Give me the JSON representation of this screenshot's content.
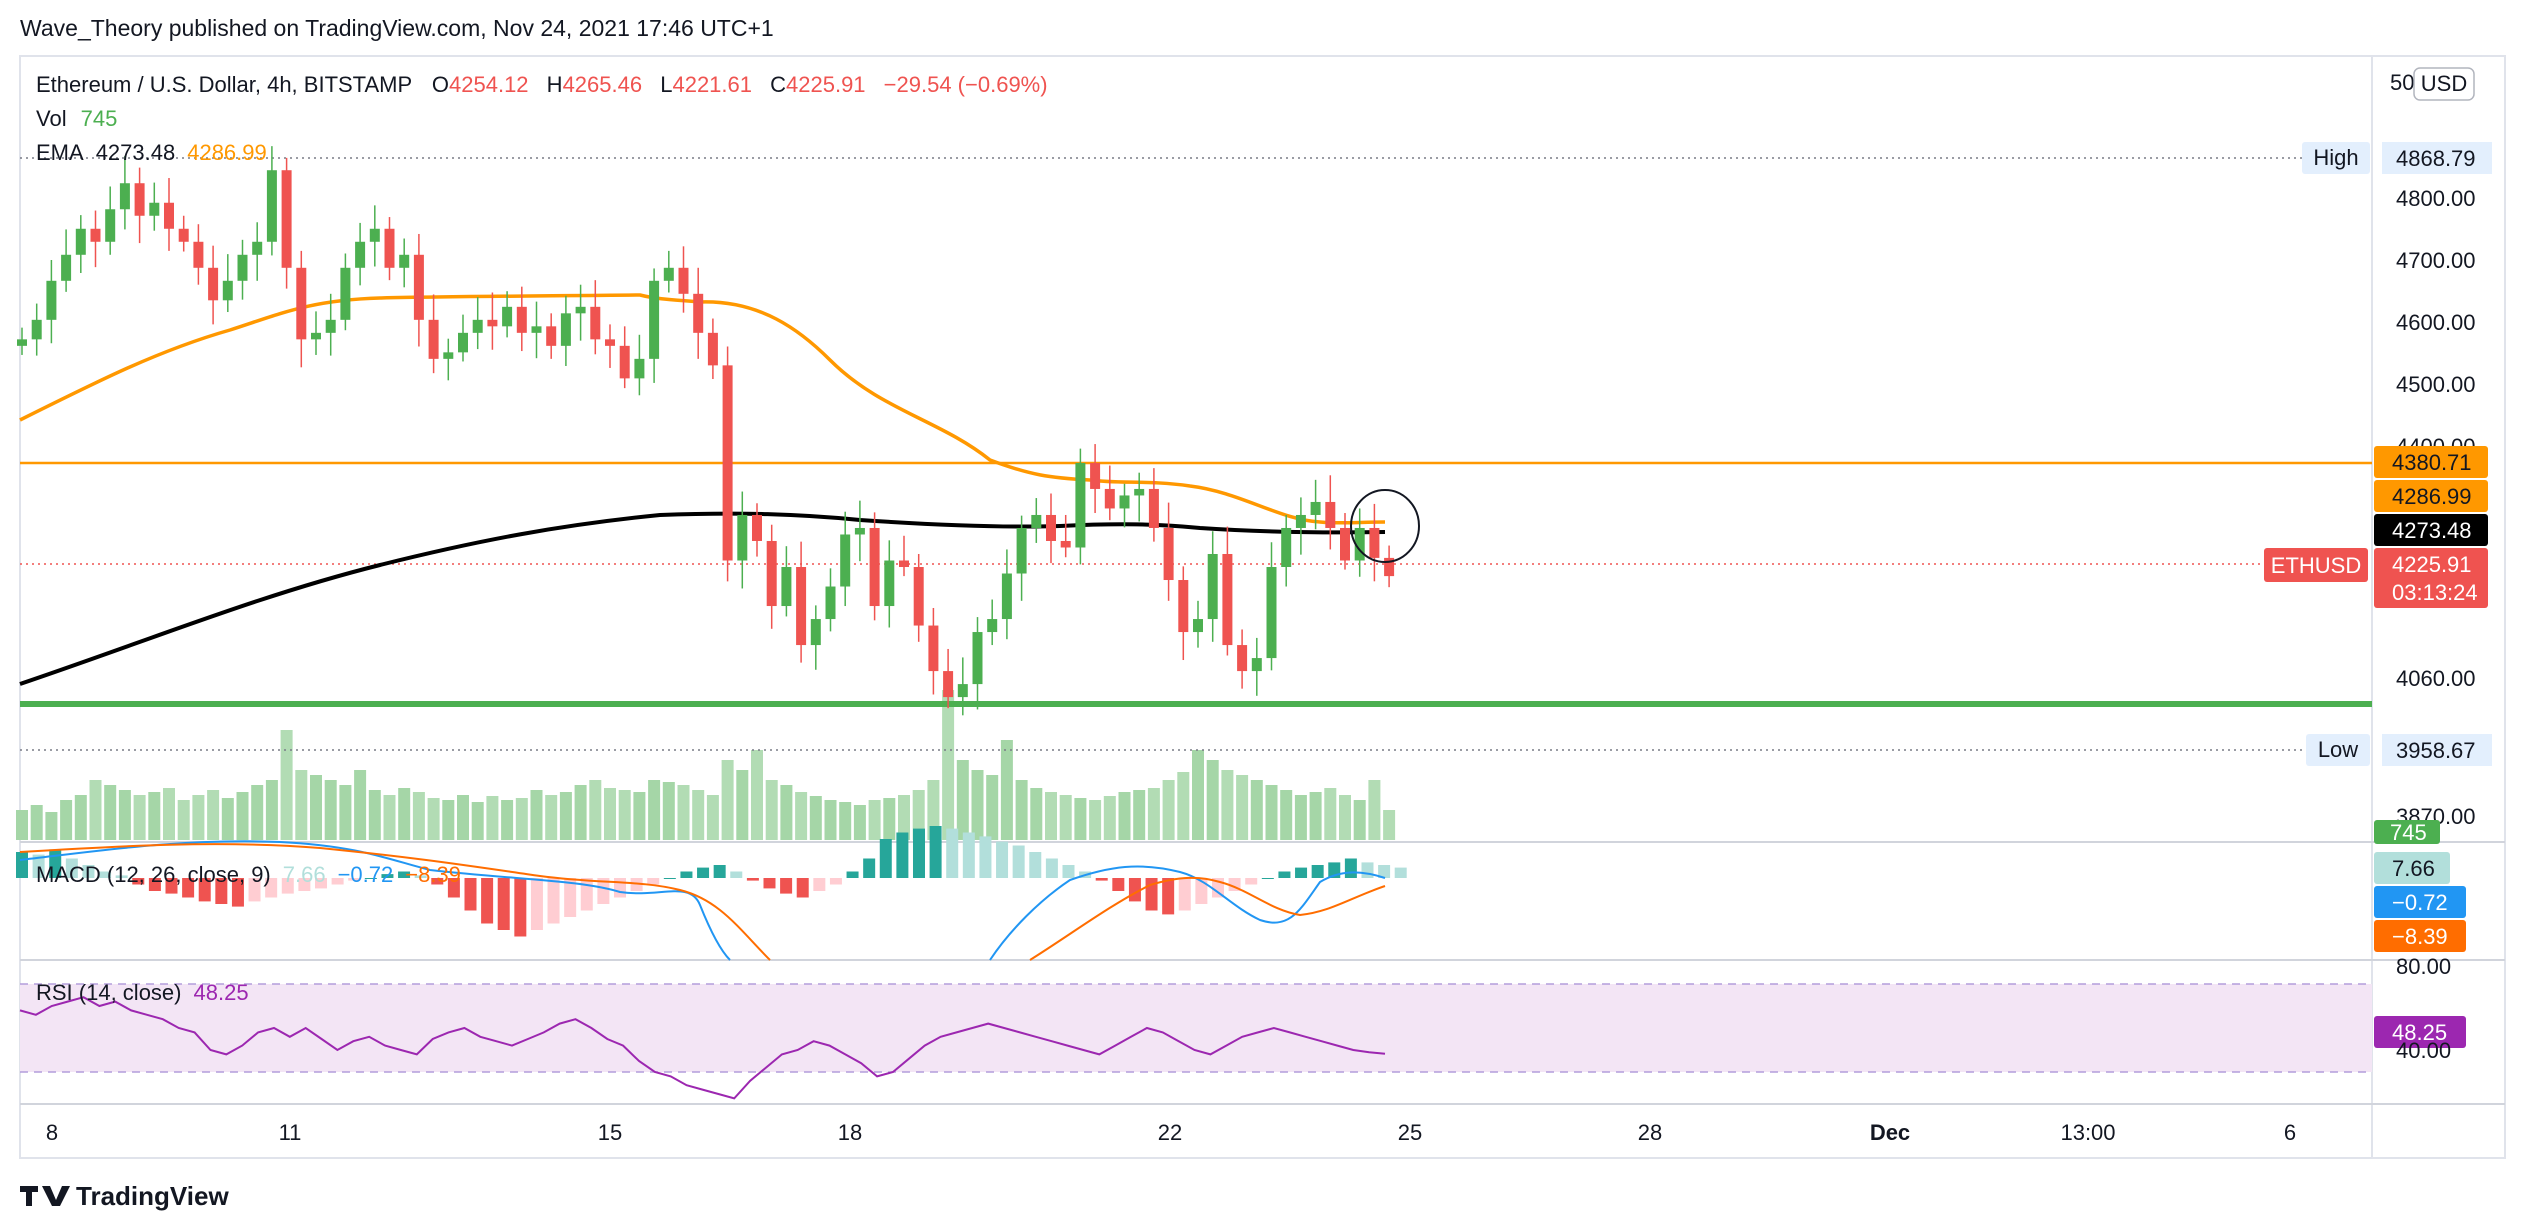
{
  "header": {
    "publisher_line": "Wave_Theory published on TradingView.com, Nov 24, 2021 17:46 UTC+1"
  },
  "legend": {
    "symbol": "Ethereum / U.S. Dollar, 4h, BITSTAMP",
    "open_label": "O",
    "open": "4254.12",
    "high_label": "H",
    "high": "4265.46",
    "low_label": "L",
    "low": "4221.61",
    "close_label": "C",
    "close": "4225.91",
    "change": "−29.54 (−0.69%)",
    "vol_label": "Vol",
    "vol": "745",
    "ema_label": "EMA",
    "ema1": "4273.48",
    "ema2": "4286.99",
    "macd_label": "MACD (12, 26, close, 9)",
    "macd_hist": "7.66",
    "macd_line": "−0.72",
    "macd_signal": "−8.39",
    "rsi_label": "RSI (14, close)",
    "rsi": "48.25"
  },
  "price_axis": {
    "currency": "USD",
    "ticks": [
      "4800.00",
      "4700.00",
      "4600.00",
      "4500.00",
      "4060.00"
    ],
    "partial_ticks": [
      "50",
      "4400.00",
      "3870.00"
    ],
    "high_label": "High",
    "high_value": "4868.79",
    "low_label": "Low",
    "low_value": "3958.67",
    "tags": {
      "orange_line": "4380.71",
      "ema_orange": "4286.99",
      "ema_black": "4273.48",
      "symbol_tag": "ETHUSD",
      "last_price": "4225.91",
      "countdown": "03:13:24",
      "volume": "745",
      "macd_hist": "7.66",
      "macd_line": "−0.72",
      "macd_signal": "−8.39",
      "rsi_value": "48.25",
      "rsi_80": "80.00",
      "rsi_40": "40.00"
    }
  },
  "time_axis": {
    "labels": [
      "8",
      "11",
      "15",
      "18",
      "22",
      "25",
      "28",
      "Dec",
      "13:00",
      "6"
    ]
  },
  "footer": {
    "brand": "TradingView"
  },
  "colors": {
    "up": "#26a69a",
    "up_candle": "#4caf50",
    "down": "#ef5350",
    "ema_fast": "#ff9800",
    "ema_slow": "#000000",
    "support": "#4caf50",
    "resistance": "#ff9800",
    "macd_line": "#2196f3",
    "macd_signal": "#ff6d00",
    "rsi_line": "#9c27b0",
    "rsi_band": "#f3e5f5"
  },
  "chart_data": [
    {
      "type": "candlestick",
      "title": "Ethereum / U.S. Dollar, 4h, BITSTAMP",
      "ylim": [
        3830,
        4980
      ],
      "x_labels": [
        "8",
        "11",
        "15",
        "18",
        "22",
        "25",
        "28",
        "Dec",
        "13:00",
        "6"
      ],
      "closes": [
        4590,
        4620,
        4680,
        4720,
        4760,
        4740,
        4790,
        4830,
        4780,
        4800,
        4760,
        4740,
        4700,
        4650,
        4680,
        4720,
        4740,
        4850,
        4700,
        4590,
        4600,
        4620,
        4700,
        4740,
        4760,
        4700,
        4720,
        4620,
        4560,
        4570,
        4600,
        4620,
        4610,
        4640,
        4600,
        4610,
        4580,
        4630,
        4640,
        4590,
        4580,
        4530,
        4560,
        4680,
        4700,
        4660,
        4600,
        4550,
        4250,
        4320,
        4280,
        4180,
        4240,
        4120,
        4160,
        4210,
        4290,
        4300,
        4180,
        4250,
        4240,
        4150,
        4080,
        4040,
        4060,
        4140,
        4160,
        4230,
        4300,
        4320,
        4280,
        4270,
        4400,
        4360,
        4330,
        4350,
        4360,
        4300,
        4220,
        4140,
        4160,
        4260,
        4120,
        4080,
        4100,
        4240,
        4300,
        4320,
        4340,
        4300,
        4250,
        4300,
        4254,
        4226
      ],
      "ema_fast_approx": [
        4470,
        4490,
        4510,
        4530,
        4550,
        4570,
        4585,
        4600,
        4615,
        4625,
        4630,
        4640,
        4645,
        4640,
        4630,
        4600,
        4550,
        4450,
        4400,
        4380,
        4360,
        4340,
        4330,
        4320,
        4310,
        4300,
        4290,
        4287
      ],
      "ema_slow_approx": [
        4050,
        4080,
        4110,
        4140,
        4170,
        4200,
        4230,
        4250,
        4270,
        4280,
        4284,
        4282,
        4278,
        4275,
        4274
      ],
      "horizontal_lines": [
        {
          "value": 4380.71,
          "color": "orange"
        },
        {
          "value": 4040,
          "color": "green"
        },
        {
          "value": 4868.79,
          "label": "High"
        },
        {
          "value": 3958.67,
          "label": "Low"
        },
        {
          "value": 4225.91,
          "label": "ETHUSD"
        }
      ]
    },
    {
      "type": "bar",
      "title": "Vol",
      "values": [
        30,
        35,
        28,
        40,
        45,
        60,
        55,
        50,
        45,
        48,
        52,
        40,
        45,
        50,
        42,
        48,
        55,
        60,
        110,
        70,
        65,
        60,
        55,
        70,
        50,
        45,
        52,
        48,
        42,
        40,
        45,
        38,
        44,
        40,
        42,
        50,
        45,
        48,
        55,
        60,
        52,
        50,
        48,
        60,
        58,
        55,
        50,
        45,
        80,
        70,
        90,
        60,
        55,
        48,
        44,
        40,
        38,
        35,
        40,
        42,
        45,
        50,
        60,
        150,
        80,
        70,
        65,
        100,
        60,
        52,
        48,
        45,
        42,
        40,
        44,
        48,
        50,
        52,
        60,
        68,
        90,
        80,
        70,
        65,
        60,
        55,
        50,
        45,
        48,
        52,
        45,
        40,
        60,
        30
      ]
    },
    {
      "type": "bar",
      "title": "MACD (12, 26, close, 9)",
      "values": [
        20,
        18,
        22,
        15,
        10,
        5,
        2,
        -5,
        -10,
        -12,
        -15,
        -18,
        -20,
        -22,
        -18,
        -15,
        -12,
        -10,
        -8,
        -5,
        -2,
        0,
        3,
        5,
        2,
        -5,
        -15,
        -25,
        -35,
        -40,
        -45,
        -40,
        -35,
        -30,
        -25,
        -20,
        -15,
        -10,
        -5,
        0,
        5,
        8,
        10,
        5,
        -2,
        -8,
        -12,
        -15,
        -10,
        -5,
        5,
        15,
        30,
        35,
        38,
        40,
        38,
        35,
        32,
        28,
        25,
        20,
        15,
        10,
        5,
        -2,
        -10,
        -18,
        -25,
        -28,
        -25,
        -20,
        -15,
        -10,
        -5,
        0,
        5,
        8,
        10,
        12,
        15,
        12,
        10,
        8
      ]
    },
    {
      "type": "line",
      "title": "RSI (14, close)",
      "ylim": [
        20,
        95
      ],
      "values": [
        68,
        66,
        70,
        72,
        74,
        70,
        72,
        68,
        66,
        64,
        60,
        58,
        50,
        48,
        52,
        58,
        60,
        56,
        60,
        55,
        50,
        54,
        56,
        52,
        50,
        48,
        55,
        58,
        60,
        56,
        54,
        52,
        55,
        58,
        62,
        64,
        60,
        55,
        52,
        45,
        40,
        38,
        34,
        32,
        30,
        28,
        36,
        42,
        48,
        50,
        54,
        52,
        48,
        44,
        38,
        40,
        46,
        52,
        56,
        58,
        60,
        62,
        60,
        58,
        56,
        54,
        52,
        50,
        48,
        52,
        56,
        60,
        58,
        54,
        50,
        48,
        52,
        56,
        58,
        60,
        58,
        56,
        54,
        52,
        50,
        49,
        48.25
      ]
    }
  ]
}
